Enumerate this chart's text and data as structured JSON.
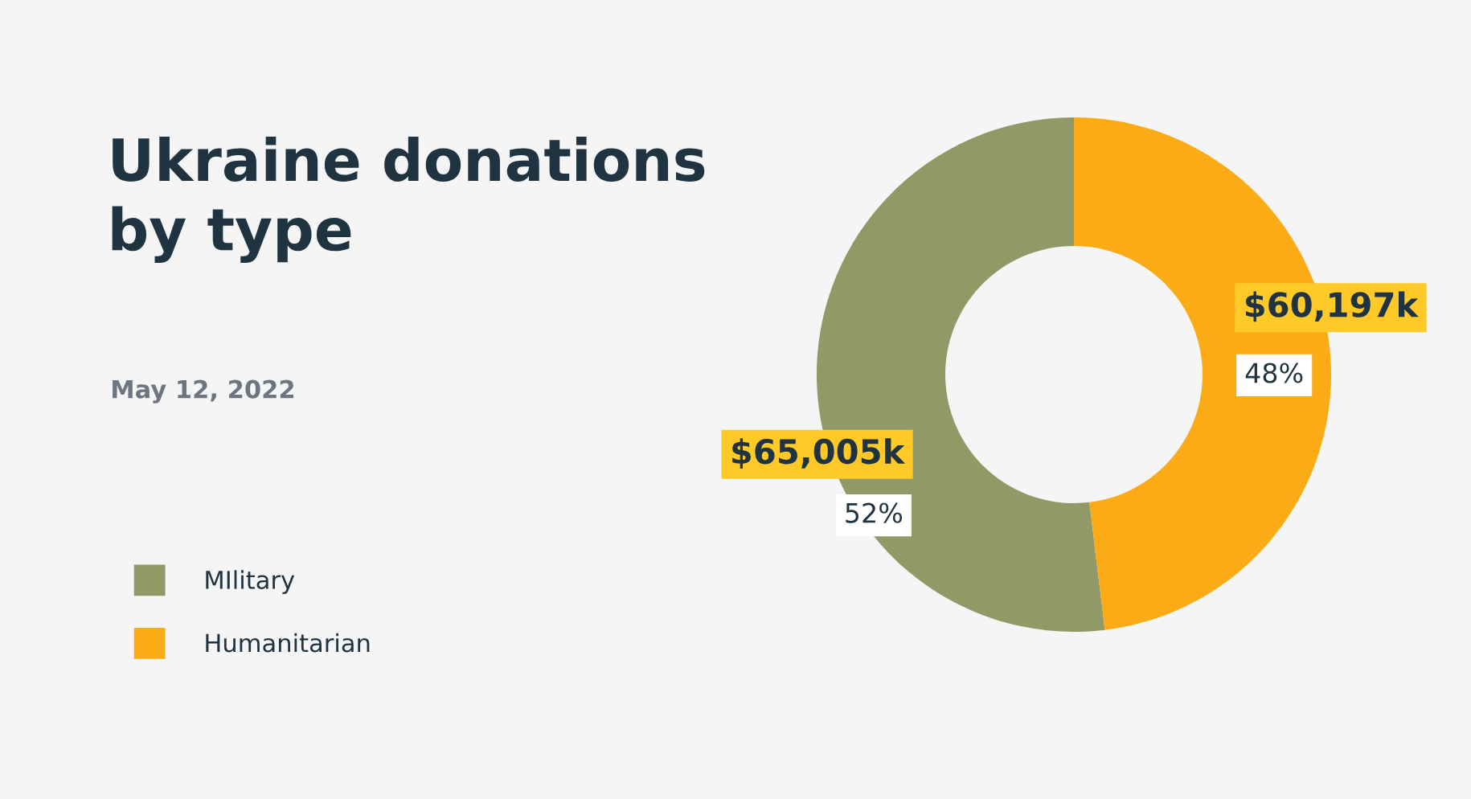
{
  "chart_data": {
    "type": "donut",
    "title": "Ukraine donations\nby type",
    "subtitle": "May 12, 2022",
    "categories": [
      "MIlitary",
      "Humanitarian"
    ],
    "values": [
      65005,
      60197
    ],
    "colors": [
      "#919966",
      "#fbab16"
    ],
    "value_labels": [
      "$65,005k",
      "$60,197k"
    ],
    "annotations": [
      "52%",
      "48%"
    ],
    "legend": "left"
  }
}
